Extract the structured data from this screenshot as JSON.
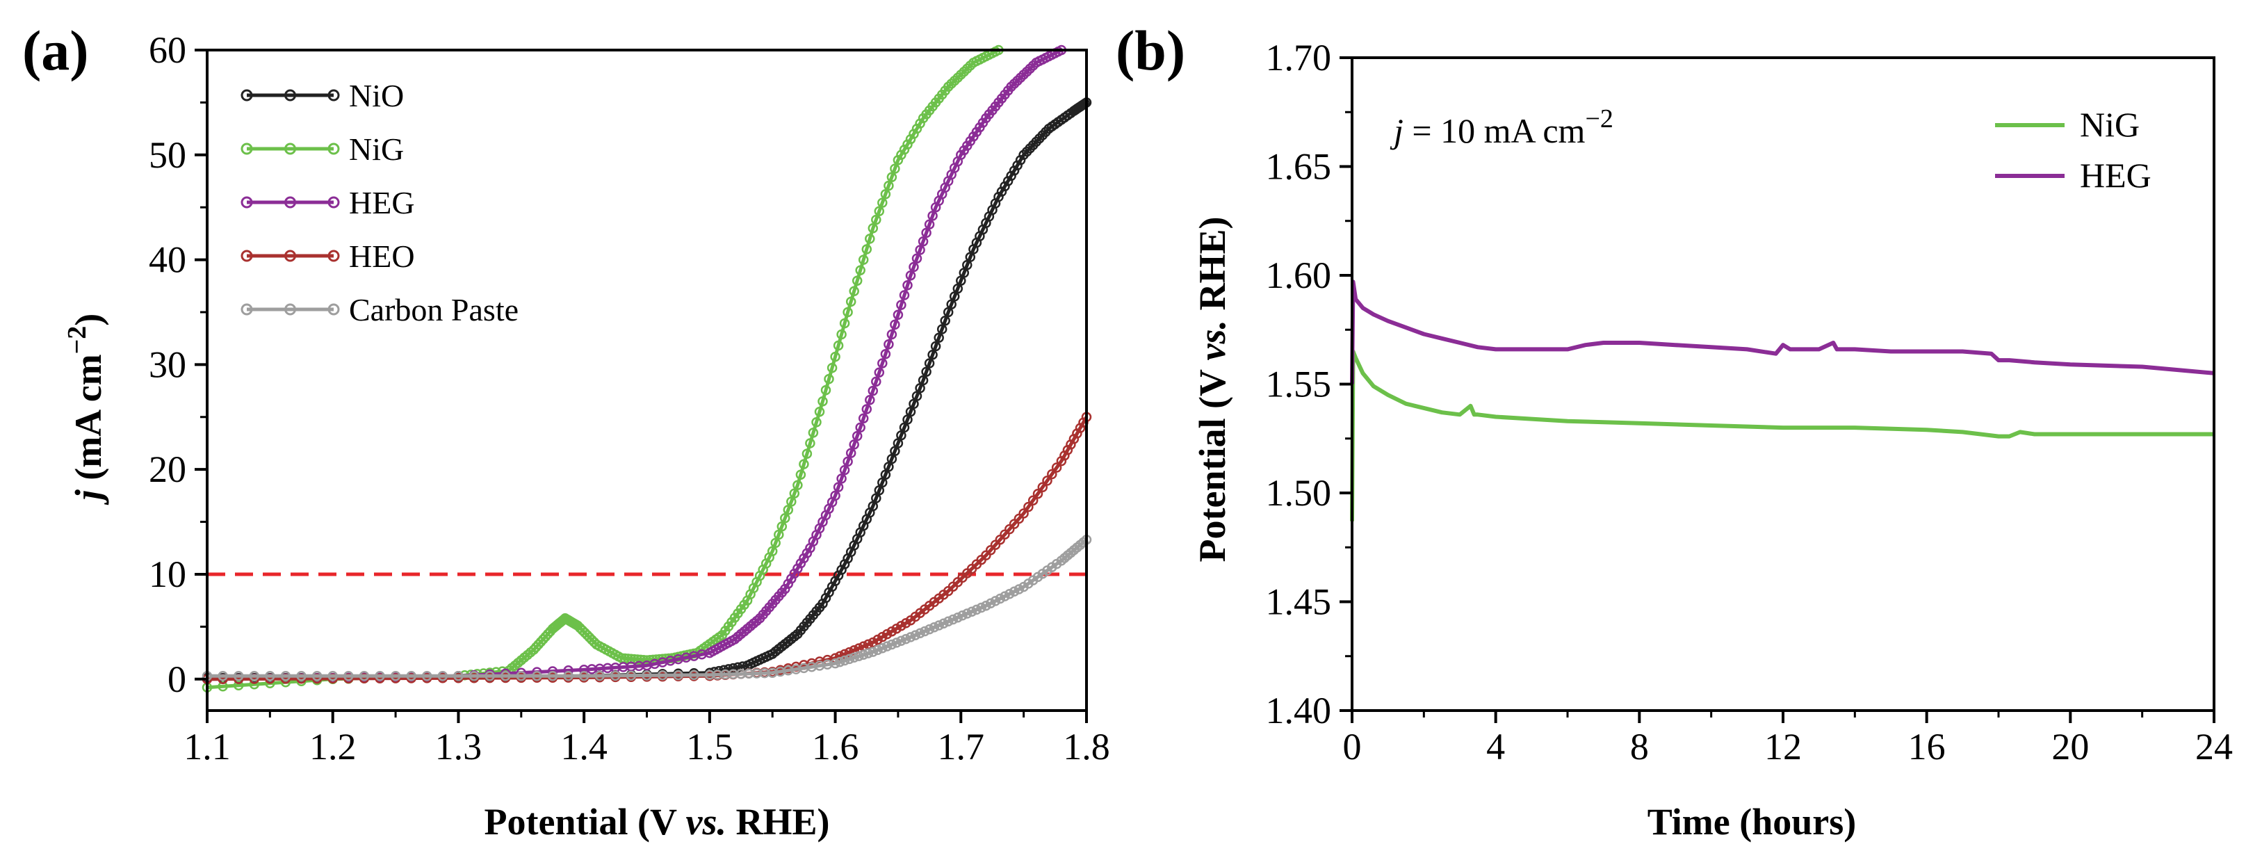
{
  "figure_colors": {
    "axis": "#000000",
    "reference_line": "#e8262a"
  },
  "chart_data": [
    {
      "panel_label": "(a)",
      "type": "line",
      "title": "",
      "xlabel": {
        "pre": "Potential (V ",
        "ital": "vs.",
        "post": " RHE)"
      },
      "ylabel": {
        "ital": "j",
        "text": " (mA cm",
        "sup": "−2",
        "close": ")"
      },
      "xlim": [
        1.1,
        1.8
      ],
      "ylim": [
        -3,
        60
      ],
      "xticks": [
        1.1,
        1.2,
        1.3,
        1.4,
        1.5,
        1.6,
        1.7,
        1.8
      ],
      "xtick_labels": [
        "1.1",
        "1.2",
        "1.3",
        "1.4",
        "1.5",
        "1.6",
        "1.7",
        "1.8"
      ],
      "yticks": [
        0,
        10,
        20,
        30,
        40,
        50,
        60
      ],
      "ytick_labels": [
        "0",
        "10",
        "20",
        "30",
        "40",
        "50",
        "60"
      ],
      "legend_position": "top-left",
      "reference_line": {
        "y": 10,
        "style": "dashed",
        "color": "#e8262a"
      },
      "series": [
        {
          "name": "NiO",
          "color": "#222222",
          "x": [
            1.1,
            1.2,
            1.3,
            1.4,
            1.5,
            1.53,
            1.55,
            1.57,
            1.59,
            1.61,
            1.63,
            1.65,
            1.67,
            1.69,
            1.71,
            1.73,
            1.75,
            1.77,
            1.79,
            1.8
          ],
          "y": [
            0.1,
            0.1,
            0.2,
            0.3,
            0.6,
            1.3,
            2.4,
            4.3,
            7.2,
            11.5,
            16.5,
            22.5,
            28.5,
            35,
            41,
            46,
            50,
            52.5,
            54.2,
            55
          ]
        },
        {
          "name": "NiG",
          "color": "#6cc04a",
          "x": [
            1.1,
            1.2,
            1.3,
            1.34,
            1.36,
            1.375,
            1.385,
            1.395,
            1.41,
            1.43,
            1.45,
            1.47,
            1.49,
            1.51,
            1.53,
            1.55,
            1.57,
            1.59,
            1.61,
            1.63,
            1.65,
            1.67,
            1.69,
            1.71,
            1.73
          ],
          "y": [
            -0.8,
            0,
            0.3,
            0.8,
            2.8,
            4.8,
            5.8,
            5.1,
            3.3,
            2.0,
            1.8,
            2.0,
            2.5,
            4.2,
            7.5,
            12.2,
            18.5,
            26.5,
            35,
            43,
            49.5,
            53.5,
            56.5,
            58.8,
            60
          ]
        },
        {
          "name": "HEG",
          "color": "#8b2d96",
          "x": [
            1.1,
            1.2,
            1.3,
            1.4,
            1.45,
            1.5,
            1.52,
            1.54,
            1.56,
            1.58,
            1.6,
            1.62,
            1.64,
            1.66,
            1.68,
            1.7,
            1.72,
            1.74,
            1.76,
            1.78
          ],
          "y": [
            0,
            0.1,
            0.3,
            0.9,
            1.3,
            2.5,
            3.8,
            5.8,
            8.6,
            12.5,
            17.5,
            24,
            31,
            38.5,
            45,
            50,
            53.5,
            56.5,
            58.8,
            60
          ]
        },
        {
          "name": "HEO",
          "color": "#a9312f",
          "x": [
            1.1,
            1.2,
            1.3,
            1.4,
            1.5,
            1.55,
            1.6,
            1.63,
            1.66,
            1.69,
            1.72,
            1.75,
            1.78,
            1.8
          ],
          "y": [
            0,
            0.05,
            0.1,
            0.15,
            0.3,
            0.7,
            2.0,
            3.5,
            5.6,
            8.4,
            11.8,
            15.8,
            20.8,
            25
          ]
        },
        {
          "name": "Carbon Paste",
          "color": "#9e9e9e",
          "x": [
            1.1,
            1.2,
            1.3,
            1.4,
            1.5,
            1.55,
            1.6,
            1.63,
            1.66,
            1.69,
            1.72,
            1.75,
            1.78,
            1.8
          ],
          "y": [
            0.3,
            0.3,
            0.3,
            0.3,
            0.4,
            0.6,
            1.5,
            2.6,
            4.0,
            5.5,
            7.0,
            8.8,
            11.3,
            13.3
          ]
        }
      ]
    },
    {
      "panel_label": "(b)",
      "type": "line",
      "title": "",
      "xlabel": "Time (hours)",
      "ylabel": {
        "pre": "Potential (V ",
        "ital": "vs.",
        "post": " RHE)"
      },
      "xlim": [
        0,
        24
      ],
      "ylim": [
        1.4,
        1.7
      ],
      "xticks": [
        0,
        4,
        8,
        12,
        16,
        20,
        24
      ],
      "xtick_labels": [
        "0",
        "4",
        "8",
        "12",
        "16",
        "20",
        "24"
      ],
      "yticks": [
        1.4,
        1.45,
        1.5,
        1.55,
        1.6,
        1.65,
        1.7
      ],
      "ytick_labels": [
        "1.40",
        "1.45",
        "1.50",
        "1.55",
        "1.60",
        "1.65",
        "1.70"
      ],
      "legend_position": "top-right",
      "annotation": {
        "ital": "j",
        "text": " = 10 mA cm",
        "sup": "−2"
      },
      "series": [
        {
          "name": "NiG",
          "color": "#6cc04a",
          "x": [
            0,
            0.03,
            0.1,
            0.3,
            0.6,
            1,
            1.5,
            2,
            2.5,
            3,
            3.3,
            3.4,
            3.5,
            4,
            5,
            6,
            8,
            10,
            12,
            14,
            16,
            17,
            18,
            18.3,
            18.6,
            19,
            20,
            22,
            24
          ],
          "y": [
            1.487,
            1.565,
            1.562,
            1.555,
            1.549,
            1.545,
            1.541,
            1.539,
            1.537,
            1.536,
            1.54,
            1.536,
            1.536,
            1.535,
            1.534,
            1.533,
            1.532,
            1.531,
            1.53,
            1.53,
            1.529,
            1.528,
            1.526,
            1.526,
            1.528,
            1.527,
            1.527,
            1.527,
            1.527
          ]
        },
        {
          "name": "HEG",
          "color": "#8b2d96",
          "x": [
            0,
            0.03,
            0.1,
            0.3,
            0.6,
            1,
            1.5,
            2,
            2.5,
            3,
            3.5,
            4,
            5,
            6,
            6.5,
            7,
            8,
            9,
            10,
            11,
            11.8,
            12,
            12.2,
            13,
            13.4,
            13.5,
            14,
            15,
            16,
            17,
            17.8,
            18,
            18.3,
            19,
            20,
            22,
            24
          ],
          "y": [
            1.55,
            1.597,
            1.589,
            1.585,
            1.582,
            1.579,
            1.576,
            1.573,
            1.571,
            1.569,
            1.567,
            1.566,
            1.566,
            1.566,
            1.568,
            1.569,
            1.569,
            1.568,
            1.567,
            1.566,
            1.564,
            1.568,
            1.566,
            1.566,
            1.569,
            1.566,
            1.566,
            1.565,
            1.565,
            1.565,
            1.564,
            1.561,
            1.561,
            1.56,
            1.559,
            1.558,
            1.555
          ]
        }
      ]
    }
  ]
}
